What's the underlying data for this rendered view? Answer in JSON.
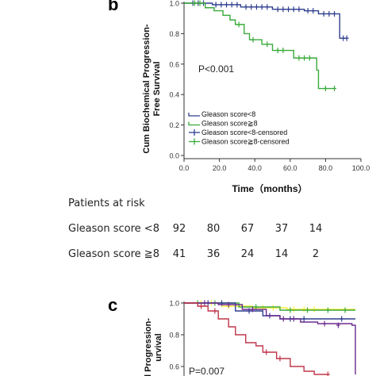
{
  "panel_b": {
    "letter": "b",
    "chart_data": {
      "type": "line",
      "ylabel": "Cum Biochemical Progression-Free Survival",
      "ylabel_lines": [
        "Cum Biochemical Progression-",
        "Free Survival"
      ],
      "xlabel": "Time（months）",
      "xlim": [
        0,
        100
      ],
      "ylim": [
        0,
        1.0
      ],
      "xticks": [
        "0.0",
        "20.0",
        "40.0",
        "60.0",
        "80.0",
        "100.0"
      ],
      "yticks": [
        "0.0",
        "0.2",
        "0.4",
        "0.6",
        "0.8",
        "1.0"
      ],
      "annotation": "P<0.001",
      "legend_placement": "lower-left",
      "legend": [
        {
          "label": "Gleason score<8",
          "kind": "line",
          "color": "#2e3f8f"
        },
        {
          "label": "Gleason score≧8",
          "kind": "line",
          "color": "#3aaa3a"
        },
        {
          "label": "Gleason score<8-censored",
          "kind": "censor",
          "color": "#2e3f8f"
        },
        {
          "label": "Gleason score≧8-censored",
          "kind": "censor",
          "color": "#3aaa3a"
        }
      ],
      "series": [
        {
          "name": "Gleason score<8",
          "color": "#2e3f8f",
          "steps": [
            [
              0,
              1.0
            ],
            [
              16,
              0.99
            ],
            [
              32,
              0.975
            ],
            [
              50,
              0.96
            ],
            [
              68,
              0.95
            ],
            [
              76,
              0.93
            ],
            [
              88,
              0.77
            ],
            [
              92,
              0.77
            ]
          ],
          "censored": [
            [
              5,
              1.0
            ],
            [
              8,
              1.0
            ],
            [
              11,
              1.0
            ],
            [
              18,
              0.99
            ],
            [
              21,
              0.99
            ],
            [
              24,
              0.99
            ],
            [
              27,
              0.99
            ],
            [
              30,
              0.99
            ],
            [
              35,
              0.975
            ],
            [
              38,
              0.975
            ],
            [
              41,
              0.975
            ],
            [
              44,
              0.975
            ],
            [
              47,
              0.975
            ],
            [
              53,
              0.96
            ],
            [
              56,
              0.96
            ],
            [
              59,
              0.96
            ],
            [
              62,
              0.96
            ],
            [
              65,
              0.96
            ],
            [
              70,
              0.95
            ],
            [
              73,
              0.95
            ],
            [
              79,
              0.93
            ],
            [
              82,
              0.93
            ],
            [
              85,
              0.93
            ],
            [
              90,
              0.77
            ],
            [
              92,
              0.77
            ]
          ]
        },
        {
          "name": "Gleason score≧8",
          "color": "#3aaa3a",
          "steps": [
            [
              0,
              1.0
            ],
            [
              12,
              0.97
            ],
            [
              17,
              0.95
            ],
            [
              22,
              0.92
            ],
            [
              26,
              0.89
            ],
            [
              29,
              0.86
            ],
            [
              34,
              0.8
            ],
            [
              37,
              0.76
            ],
            [
              44,
              0.73
            ],
            [
              50,
              0.69
            ],
            [
              62,
              0.64
            ],
            [
              75,
              0.56
            ],
            [
              76,
              0.44
            ],
            [
              85,
              0.44
            ]
          ],
          "censored": [
            [
              6,
              1.0
            ],
            [
              9,
              1.0
            ],
            [
              31,
              0.86
            ],
            [
              39,
              0.76
            ],
            [
              47,
              0.73
            ],
            [
              53,
              0.69
            ],
            [
              56,
              0.69
            ],
            [
              65,
              0.64
            ],
            [
              68,
              0.64
            ],
            [
              71,
              0.64
            ],
            [
              80,
              0.44
            ],
            [
              85,
              0.44
            ]
          ]
        }
      ]
    }
  },
  "risk_table": {
    "title": "Patients at risk",
    "rows": [
      {
        "label": "Gleason score <8",
        "values": [
          "92",
          "80",
          "67",
          "37",
          "14"
        ]
      },
      {
        "label": "Gleason score ≧8",
        "values": [
          "41",
          "36",
          "24",
          "14",
          "2"
        ]
      }
    ]
  },
  "panel_c": {
    "letter": "c",
    "chart_data": {
      "type": "line",
      "ylabel_lines": [
        "l Progression-",
        "urvival"
      ],
      "ylim": [
        0.6,
        1.0
      ],
      "yticks": [
        "1.0",
        "0.8",
        "0.6"
      ],
      "annotation": "P=0.007",
      "series": [
        {
          "color": "#ffee33",
          "steps": [
            [
              0,
              1.0
            ],
            [
              22,
              0.98
            ],
            [
              40,
              0.97
            ],
            [
              60,
              0.96
            ],
            [
              80,
              0.96
            ],
            [
              100,
              0.96
            ]
          ],
          "censored": [
            [
              10,
              1.0
            ],
            [
              16,
              1.0
            ],
            [
              26,
              0.98
            ],
            [
              34,
              0.98
            ],
            [
              46,
              0.97
            ],
            [
              52,
              0.97
            ],
            [
              64,
              0.96
            ],
            [
              70,
              0.96
            ],
            [
              76,
              0.96
            ]
          ]
        },
        {
          "color": "#3aaa3a",
          "steps": [
            [
              0,
              1.0
            ],
            [
              32,
              0.975
            ],
            [
              56,
              0.955
            ],
            [
              100,
              0.955
            ]
          ],
          "censored": [
            [
              8,
              1.0
            ],
            [
              18,
              1.0
            ],
            [
              42,
              0.975
            ],
            [
              62,
              0.955
            ],
            [
              72,
              0.955
            ],
            [
              84,
              0.955
            ],
            [
              94,
              0.955
            ]
          ]
        },
        {
          "color": "#2e3f8f",
          "steps": [
            [
              0,
              1.0
            ],
            [
              30,
              0.95
            ],
            [
              46,
              0.92
            ],
            [
              56,
              0.9
            ],
            [
              80,
              0.9
            ],
            [
              100,
              0.9
            ]
          ],
          "censored": [
            [
              14,
              1.0
            ],
            [
              22,
              1.0
            ],
            [
              38,
              0.95
            ],
            [
              50,
              0.92
            ],
            [
              62,
              0.9
            ],
            [
              70,
              0.9
            ],
            [
              92,
              0.9
            ]
          ]
        },
        {
          "color": "#6b2c8f",
          "steps": [
            [
              0,
              1.0
            ],
            [
              20,
              0.99
            ],
            [
              34,
              0.96
            ],
            [
              48,
              0.92
            ],
            [
              56,
              0.9
            ],
            [
              62,
              0.9
            ],
            [
              68,
              0.88
            ],
            [
              78,
              0.87
            ],
            [
              98,
              0.86
            ],
            [
              100,
              0.55
            ]
          ],
          "censored": [
            [
              12,
              1.0
            ],
            [
              26,
              0.99
            ],
            [
              40,
              0.96
            ],
            [
              58,
              0.9
            ],
            [
              64,
              0.9
            ],
            [
              82,
              0.87
            ],
            [
              90,
              0.86
            ]
          ]
        },
        {
          "color": "#c0364a",
          "steps": [
            [
              0,
              1.0
            ],
            [
              8,
              0.98
            ],
            [
              14,
              0.95
            ],
            [
              20,
              0.9
            ],
            [
              26,
              0.85
            ],
            [
              30,
              0.8
            ],
            [
              36,
              0.75
            ],
            [
              42,
              0.73
            ],
            [
              46,
              0.69
            ],
            [
              54,
              0.65
            ],
            [
              62,
              0.6
            ],
            [
              70,
              0.57
            ],
            [
              76,
              0.55
            ],
            [
              84,
              0.55
            ]
          ],
          "censored": [
            [
              10,
              0.98
            ],
            [
              18,
              0.95
            ],
            [
              48,
              0.69
            ],
            [
              56,
              0.65
            ],
            [
              84,
              0.55
            ]
          ]
        }
      ]
    }
  }
}
